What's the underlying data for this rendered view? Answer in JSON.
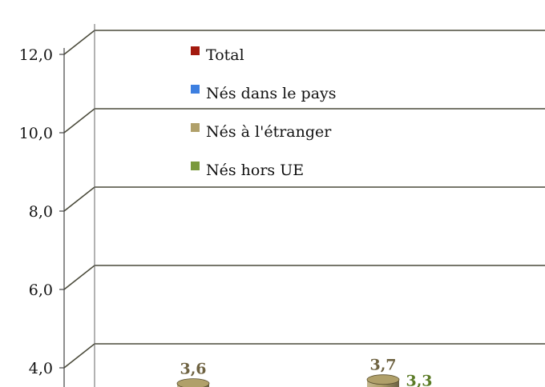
{
  "chart_data": {
    "type": "bar",
    "style": "3d-cylinder",
    "title": "",
    "xlabel": "",
    "ylabel": "",
    "ylim": [
      4.0,
      12.0
    ],
    "yticks": [
      "12,0",
      "10,0",
      "8,0",
      "6,0",
      "4,0"
    ],
    "yticks_values": [
      12,
      10,
      8,
      6,
      4
    ],
    "grid": true,
    "legend_position": "top-center",
    "categories": [
      "",
      ""
    ],
    "series": [
      {
        "name": "Total",
        "color": "#a31a0f",
        "values": [
          null,
          null
        ]
      },
      {
        "name": "Nés dans le pays",
        "color": "#3d7fe0",
        "values": [
          null,
          null
        ]
      },
      {
        "name": "Nés à l'étranger",
        "color": "#b0a06a",
        "values": [
          3.6,
          3.7
        ],
        "labels": [
          "3,6",
          "3,7"
        ],
        "label_color": "#6e6241"
      },
      {
        "name": "Nés hors UE",
        "color": "#7a9a3c",
        "values": [
          null,
          3.3
        ],
        "labels": [
          null,
          "3,3"
        ],
        "label_color": "#5a7a25"
      }
    ]
  }
}
